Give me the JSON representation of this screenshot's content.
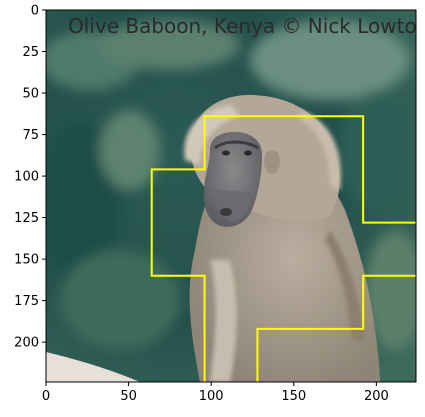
{
  "image": {
    "subject": "olive-baboon-photo",
    "watermark": "Olive Baboon, Kenya © Nick Lowton",
    "extent": {
      "width": 224,
      "height": 224
    }
  },
  "axes": {
    "x_ticks": [
      {
        "value": 0,
        "label": "0"
      },
      {
        "value": 50,
        "label": "50"
      },
      {
        "value": 100,
        "label": "100"
      },
      {
        "value": 150,
        "label": "150"
      },
      {
        "value": 200,
        "label": "200"
      }
    ],
    "y_ticks": [
      {
        "value": 0,
        "label": "0"
      },
      {
        "value": 25,
        "label": "25"
      },
      {
        "value": 50,
        "label": "50"
      },
      {
        "value": 75,
        "label": "75"
      },
      {
        "value": 100,
        "label": "100"
      },
      {
        "value": 125,
        "label": "125"
      },
      {
        "value": 150,
        "label": "150"
      },
      {
        "value": 175,
        "label": "175"
      },
      {
        "value": 200,
        "label": "200"
      }
    ]
  },
  "overlay": {
    "color": "#ffff00",
    "segments": [
      [
        [
          96,
          224
        ],
        [
          96,
          160
        ],
        [
          64,
          160
        ],
        [
          64,
          96
        ],
        [
          96,
          96
        ],
        [
          96,
          64
        ],
        [
          192,
          64
        ],
        [
          192,
          128
        ],
        [
          224,
          128
        ]
      ],
      [
        [
          128,
          224
        ],
        [
          128,
          192
        ],
        [
          192,
          192
        ],
        [
          192,
          160
        ],
        [
          224,
          160
        ]
      ]
    ]
  },
  "colors": {
    "background": "#2f5a52",
    "fur": "#a2988a",
    "fur_light": "#c8bfb0",
    "face": "#7c7a7c",
    "rock": "#e6e0d8"
  }
}
